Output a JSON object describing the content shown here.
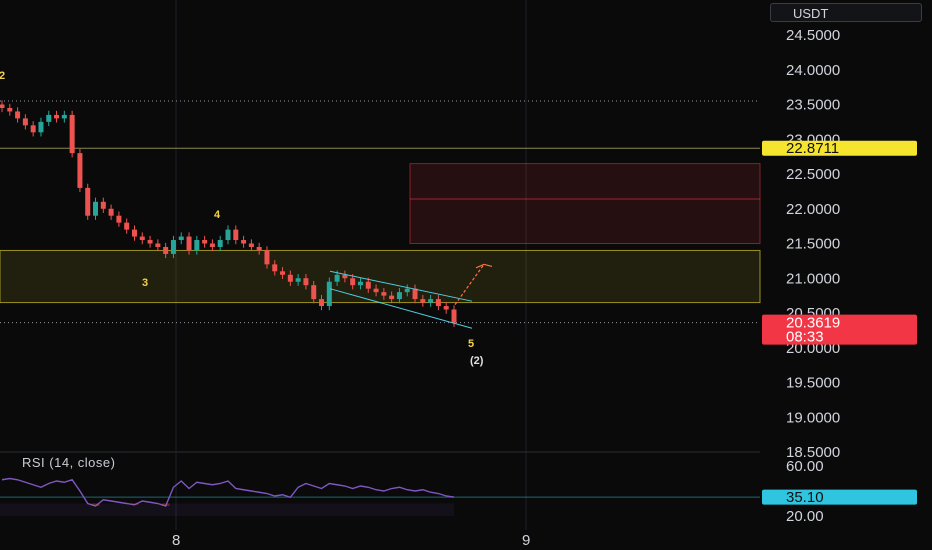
{
  "currency": "USDT",
  "rsi": {
    "title": "RSI (14, close)",
    "value_label": "35.10",
    "ticks": [
      "60.00",
      "20.00"
    ]
  },
  "price_axis": {
    "ticks": [
      "24.5000",
      "24.0000",
      "23.5000",
      "23.0000",
      "22.5000",
      "22.0000",
      "21.5000",
      "21.0000",
      "20.5000",
      "20.0000",
      "19.5000",
      "19.0000",
      "18.5000"
    ]
  },
  "badges": {
    "level": "22.8711",
    "last_price": "20.3619",
    "countdown": "08:33"
  },
  "time_axis": {
    "labels": [
      "8",
      "9"
    ]
  },
  "wave_labels": {
    "w2_left": "2",
    "w3": "3",
    "w4": "4",
    "w5": "5",
    "w2_paren": "(2)"
  },
  "colors": {
    "bull": "#26a69a",
    "bear": "#ef5350",
    "level_badge": "#f5e52f",
    "price_badge": "#f23645",
    "rsi_line": "#7e57c2",
    "rsi_badge": "#2fc5e0",
    "zone_yellow": "#f5e52f",
    "zone_red": "#f23645",
    "channel": "#4dd0e1",
    "arrow": "#ff7043"
  },
  "chart_data": {
    "type": "candlestick",
    "price_range": [
      18.5,
      24.5
    ],
    "rsi_range": [
      20,
      60
    ],
    "levels": {
      "resistance_line": 22.8711,
      "last_price": 20.3619,
      "rsi_last": 35.1
    },
    "zones": [
      {
        "type": "support",
        "from": 20.65,
        "to": 21.4
      },
      {
        "type": "resistance",
        "from": 21.5,
        "to": 22.65,
        "mid": 22.14
      }
    ],
    "price_path": [
      [
        23.5,
        23.45
      ],
      [
        23.45,
        23.4
      ],
      [
        23.4,
        23.3
      ],
      [
        23.3,
        23.2
      ],
      [
        23.2,
        23.1
      ],
      [
        23.1,
        23.25
      ],
      [
        23.25,
        23.35
      ],
      [
        23.35,
        23.3
      ],
      [
        23.3,
        23.35
      ],
      [
        23.35,
        22.8
      ],
      [
        22.8,
        22.3
      ],
      [
        22.3,
        21.9
      ],
      [
        21.9,
        22.1
      ],
      [
        22.1,
        22.0
      ],
      [
        22.0,
        21.9
      ],
      [
        21.9,
        21.8
      ],
      [
        21.8,
        21.7
      ],
      [
        21.7,
        21.6
      ],
      [
        21.6,
        21.55
      ],
      [
        21.55,
        21.5
      ],
      [
        21.5,
        21.45
      ],
      [
        21.45,
        21.35
      ],
      [
        21.35,
        21.55
      ],
      [
        21.55,
        21.6
      ],
      [
        21.6,
        21.4
      ],
      [
        21.4,
        21.55
      ],
      [
        21.55,
        21.5
      ],
      [
        21.5,
        21.45
      ],
      [
        21.45,
        21.55
      ],
      [
        21.55,
        21.7
      ],
      [
        21.7,
        21.55
      ],
      [
        21.55,
        21.5
      ],
      [
        21.5,
        21.45
      ],
      [
        21.45,
        21.4
      ],
      [
        21.4,
        21.2
      ],
      [
        21.2,
        21.1
      ],
      [
        21.1,
        21.05
      ],
      [
        21.05,
        20.95
      ],
      [
        20.95,
        21.0
      ],
      [
        21.0,
        20.9
      ],
      [
        20.9,
        20.7
      ],
      [
        20.7,
        20.6
      ],
      [
        20.6,
        20.95
      ],
      [
        20.95,
        21.05
      ],
      [
        21.05,
        21.0
      ],
      [
        21.0,
        20.9
      ],
      [
        20.9,
        20.95
      ],
      [
        20.95,
        20.85
      ],
      [
        20.85,
        20.8
      ],
      [
        20.8,
        20.75
      ],
      [
        20.75,
        20.7
      ],
      [
        20.7,
        20.8
      ],
      [
        20.8,
        20.85
      ],
      [
        20.85,
        20.7
      ],
      [
        20.7,
        20.65
      ],
      [
        20.65,
        20.7
      ],
      [
        20.7,
        20.6
      ],
      [
        20.6,
        20.55
      ],
      [
        20.55,
        20.36
      ]
    ],
    "rsi_values": [
      49,
      50,
      49,
      47,
      45,
      43,
      46,
      48,
      47,
      49,
      40,
      30,
      28,
      33,
      32,
      31,
      30,
      29,
      32,
      31,
      30,
      28,
      43,
      48,
      42,
      47,
      46,
      45,
      46,
      48,
      42,
      41,
      40,
      39,
      38,
      36,
      37,
      35,
      43,
      46,
      44,
      42,
      46,
      45,
      44,
      42,
      44,
      43,
      41,
      40,
      42,
      43,
      41,
      40,
      41,
      39,
      38,
      36,
      35.1
    ]
  }
}
